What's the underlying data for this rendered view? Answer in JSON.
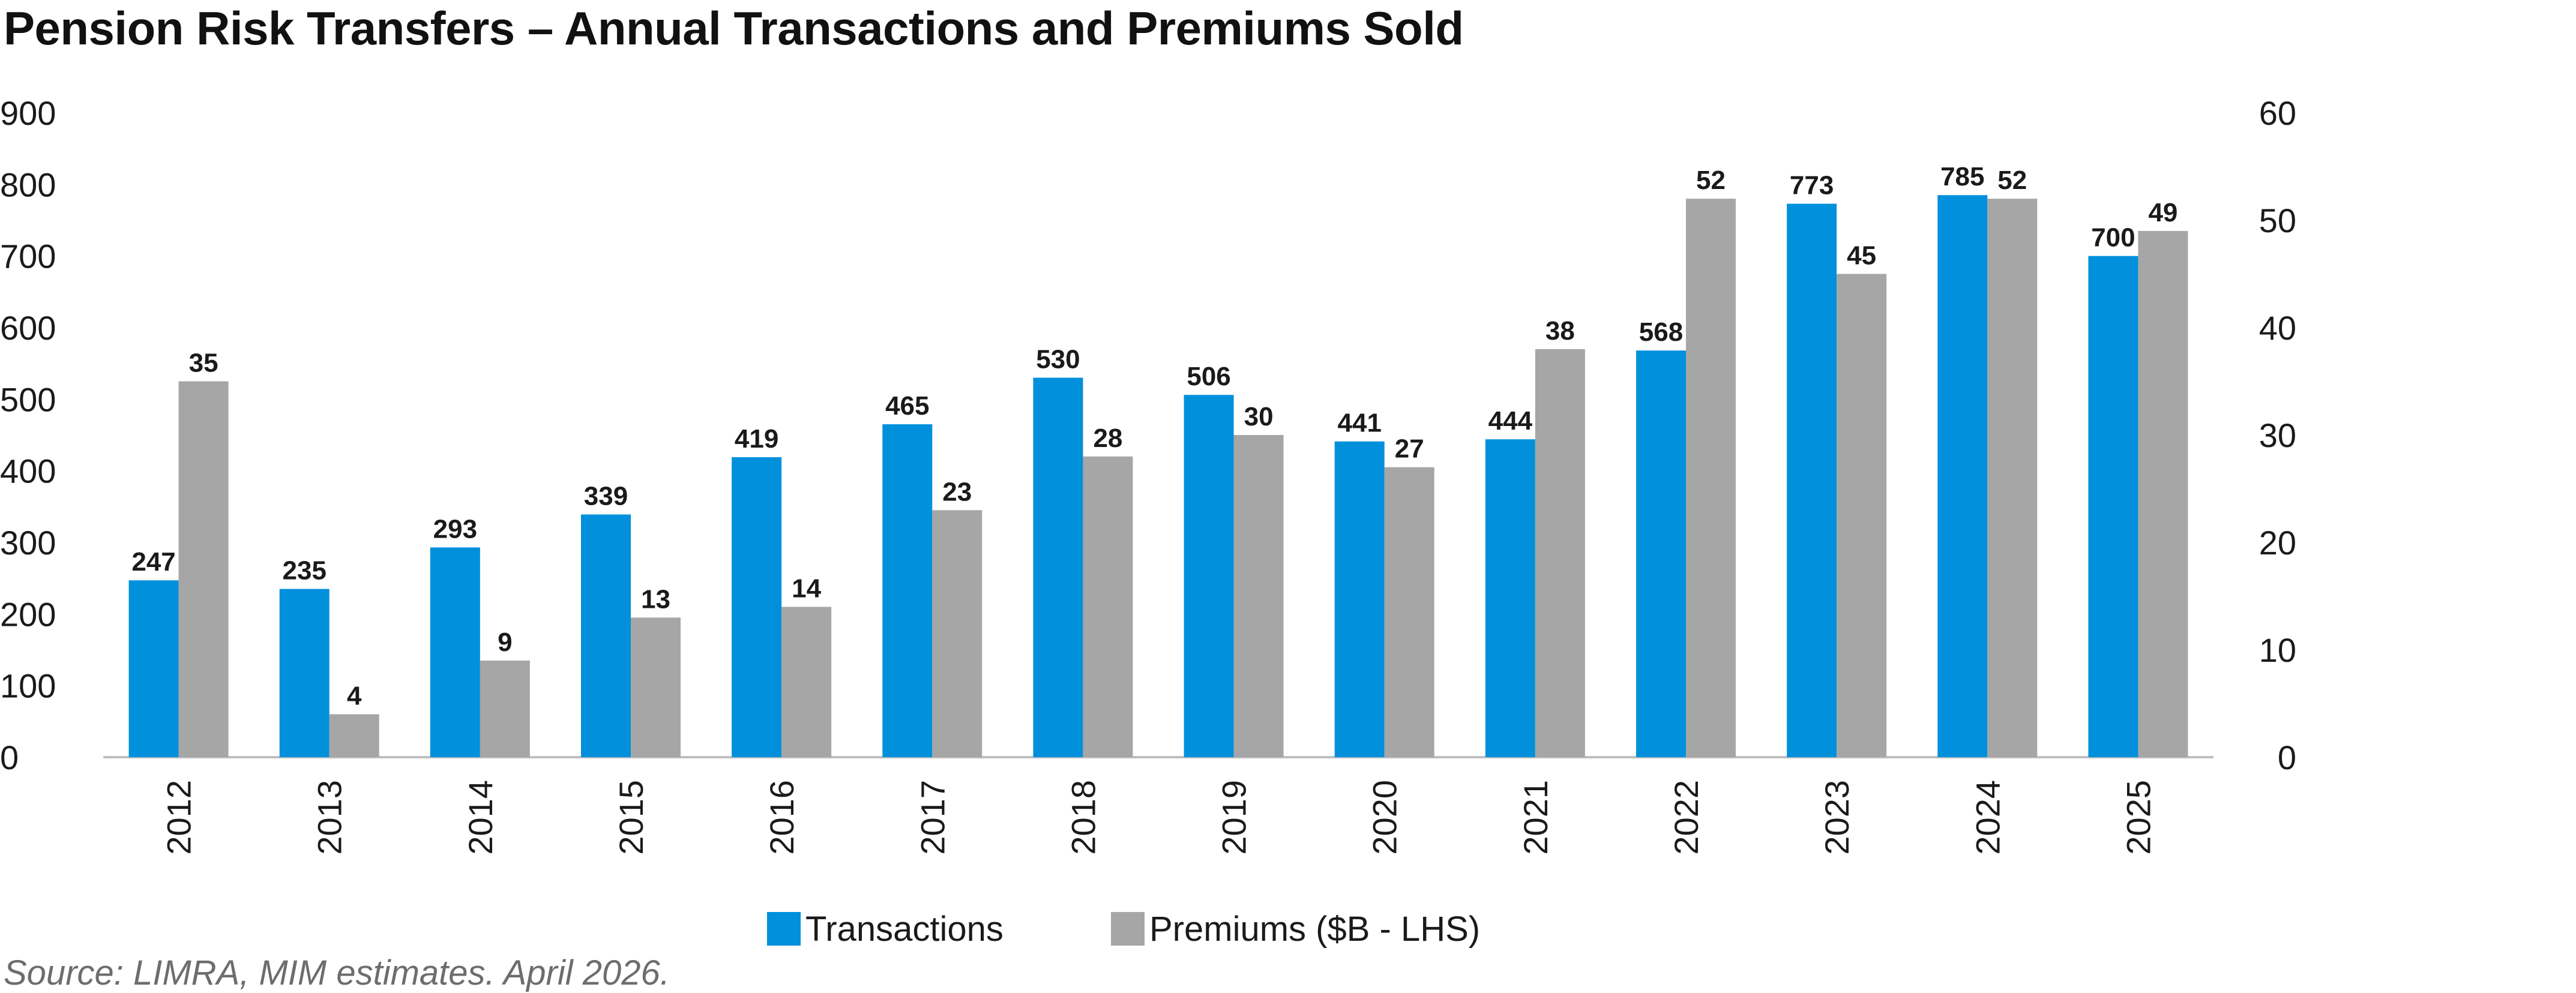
{
  "chart_data": {
    "type": "bar",
    "title": "Pension Risk Transfers – Annual Transactions and Premiums Sold",
    "categories": [
      "2012",
      "2013",
      "2014",
      "2015",
      "2016",
      "2017",
      "2018",
      "2019",
      "2020",
      "2021",
      "2022",
      "2023",
      "2024",
      "2025"
    ],
    "series": [
      {
        "name": "Transactions",
        "axis": "left",
        "color": "#0090dc",
        "values": [
          247,
          235,
          293,
          339,
          419,
          465,
          530,
          506,
          441,
          444,
          568,
          773,
          785,
          700
        ],
        "labels": [
          "247",
          "235",
          "293",
          "339",
          "419",
          "465",
          "530",
          "506",
          "441",
          "444",
          "568",
          "773",
          "785",
          "700"
        ]
      },
      {
        "name": "Premiums ($B - LHS)",
        "axis": "right",
        "color": "#a6a6a6",
        "values": [
          35,
          4,
          9,
          13,
          14,
          23,
          28,
          30,
          27,
          38,
          52,
          45,
          52,
          49
        ],
        "labels": [
          "35",
          "4",
          "9",
          "13",
          "14",
          "23",
          "28",
          "30",
          "27",
          "38",
          "52",
          "45",
          "52",
          "49"
        ]
      }
    ],
    "left_axis": {
      "ylim": [
        0,
        900
      ],
      "ticks": [
        "0",
        "100",
        "200",
        "300",
        "400",
        "500",
        "600",
        "700",
        "800",
        "900"
      ]
    },
    "right_axis": {
      "ylim": [
        0,
        60
      ],
      "ticks": [
        "0",
        "10",
        "20",
        "30",
        "40",
        "50",
        "60"
      ]
    },
    "xlabel": "",
    "ylabel": "",
    "grid": false,
    "legend_position": "bottom-center"
  },
  "source": "Source: LIMRA, MIM estimates. April 2026."
}
